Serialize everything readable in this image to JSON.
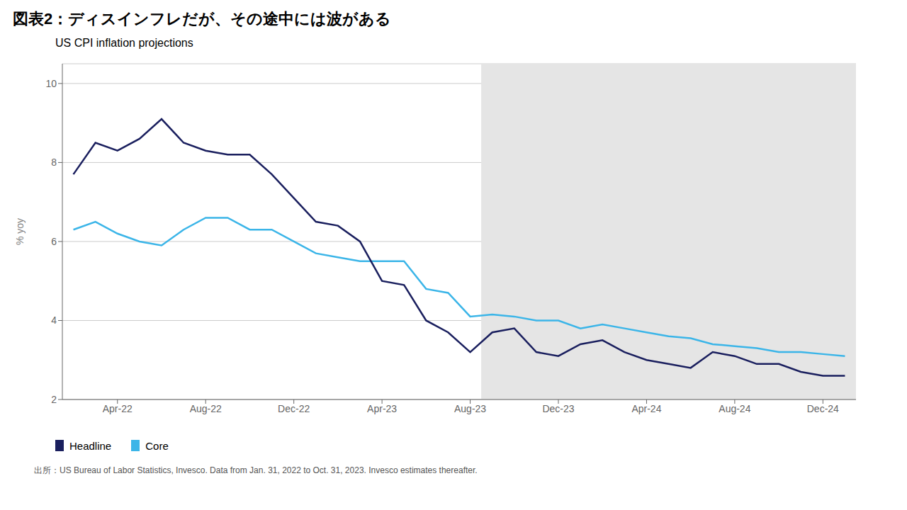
{
  "chart_data": {
    "type": "line",
    "title": "図表2：ディスインフレだが、その途中には波がある",
    "subtitle": "US CPI inflation projections",
    "y_label": "% yoy",
    "annotations": [
      "出所：US Bureau of Labor Statistics, Invesco. Data from Jan. 31, 2022 to Oct. 31, 2023. Invesco estimates thereafter."
    ],
    "x": [
      0,
      1,
      2,
      3,
      4,
      5,
      6,
      7,
      8,
      9,
      10,
      11,
      12,
      13,
      14,
      15,
      16,
      17,
      18,
      19,
      20,
      21,
      22,
      23,
      24,
      25,
      26,
      27,
      28,
      29,
      30,
      31,
      32,
      33,
      34,
      35
    ],
    "series": [
      {
        "name": "Headline",
        "color": "#1a1f5e",
        "values": [
          7.7,
          8.5,
          8.3,
          8.6,
          9.1,
          8.5,
          8.3,
          8.2,
          8.2,
          7.7,
          7.1,
          6.5,
          6.4,
          6.0,
          5.0,
          4.9,
          4.0,
          3.7,
          3.2,
          3.7,
          3.8,
          3.2,
          3.1,
          3.4,
          3.5,
          3.2,
          3.0,
          2.9,
          2.8,
          3.2,
          3.1,
          2.9,
          2.9,
          2.7,
          2.6,
          2.6
        ]
      },
      {
        "name": "Core",
        "color": "#3bb5e8",
        "values": [
          6.3,
          6.5,
          6.2,
          6.0,
          5.9,
          6.3,
          6.6,
          6.6,
          6.3,
          6.3,
          6.0,
          5.7,
          5.6,
          5.5,
          5.5,
          5.5,
          4.8,
          4.7,
          4.1,
          4.15,
          4.1,
          4.0,
          4.0,
          3.8,
          3.9,
          3.8,
          3.7,
          3.6,
          3.55,
          3.4,
          3.35,
          3.3,
          3.2,
          3.2,
          3.15,
          3.1
        ]
      }
    ],
    "xlim": [
      -0.5,
      35.5
    ],
    "xticks": [
      {
        "value": 2,
        "label": "Apr-22"
      },
      {
        "value": 6,
        "label": "Aug-22"
      },
      {
        "value": 10,
        "label": "Dec-22"
      },
      {
        "value": 14,
        "label": "Apr-23"
      },
      {
        "value": 18,
        "label": "Aug-23"
      },
      {
        "value": 22,
        "label": "Dec-23"
      },
      {
        "value": 26,
        "label": "Apr-24"
      },
      {
        "value": 30,
        "label": "Aug-24"
      },
      {
        "value": 34,
        "label": "Dec-24"
      }
    ],
    "ylim": [
      2,
      10.5
    ],
    "yticks": [
      2,
      4,
      6,
      8,
      10
    ],
    "shade": {
      "from": 18.5,
      "to": 35.5,
      "color": "#e5e5e5"
    },
    "grid": true,
    "legend": "bottom"
  }
}
